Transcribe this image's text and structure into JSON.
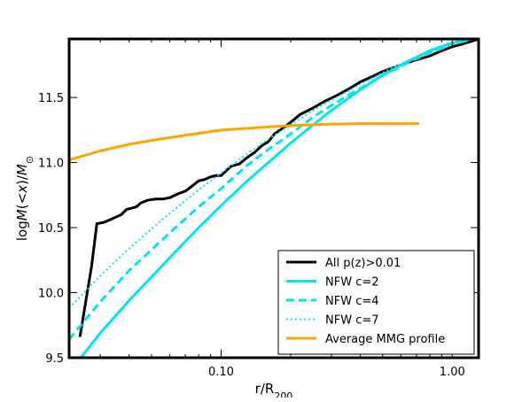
{
  "chart_data": {
    "type": "line",
    "title": "",
    "xlabel": {
      "main": "r/R",
      "sub": "200"
    },
    "ylabel": {
      "pre": "log",
      "M": "M",
      "lt": "(<",
      "x": "x",
      "rp": ")/",
      "M2": "M",
      "sun": "⊙"
    },
    "xscale": "log",
    "xlim": [
      0.022,
      1.3
    ],
    "ylim": [
      9.5,
      11.95
    ],
    "xticks": [
      0.1,
      1.0
    ],
    "xtick_labels": [
      "0.10",
      "1.00"
    ],
    "yticks": [
      9.5,
      10.0,
      10.5,
      11.0,
      11.5
    ],
    "ytick_labels": [
      "9.5",
      "10.0",
      "10.5",
      "11.0",
      "11.5"
    ],
    "grid": false,
    "legend_position": "lower-right",
    "series": [
      {
        "name": "All p(z)>0.01",
        "color": "#000000",
        "style": "solid",
        "x": [
          0.0245,
          0.0275,
          0.029,
          0.031,
          0.033,
          0.035,
          0.037,
          0.039,
          0.041,
          0.043,
          0.045,
          0.048,
          0.052,
          0.056,
          0.06,
          0.065,
          0.07,
          0.075,
          0.08,
          0.085,
          0.09,
          0.095,
          0.1,
          0.11,
          0.12,
          0.13,
          0.14,
          0.15,
          0.16,
          0.17,
          0.18,
          0.2,
          0.22,
          0.25,
          0.28,
          0.32,
          0.36,
          0.4,
          0.45,
          0.5,
          0.6,
          0.7,
          0.8,
          0.9,
          1.0,
          1.1,
          1.2,
          1.3
        ],
        "y": [
          9.66,
          10.2,
          10.53,
          10.54,
          10.56,
          10.58,
          10.6,
          10.64,
          10.65,
          10.66,
          10.69,
          10.71,
          10.72,
          10.72,
          10.73,
          10.76,
          10.78,
          10.82,
          10.86,
          10.87,
          10.89,
          10.9,
          10.9,
          10.97,
          10.99,
          11.04,
          11.08,
          11.13,
          11.16,
          11.22,
          11.25,
          11.31,
          11.37,
          11.42,
          11.47,
          11.52,
          11.57,
          11.62,
          11.66,
          11.7,
          11.75,
          11.79,
          11.82,
          11.86,
          11.89,
          11.91,
          11.93,
          11.95
        ]
      },
      {
        "name": "NFW c=2",
        "color": "#00e5ee",
        "style": "solid",
        "x": [
          0.024,
          0.03,
          0.04,
          0.05,
          0.06,
          0.08,
          0.1,
          0.13,
          0.16,
          0.2,
          0.25,
          0.3,
          0.4,
          0.5,
          0.6,
          0.7,
          0.8,
          1.0,
          1.3
        ],
        "y": [
          9.47,
          9.69,
          9.94,
          10.12,
          10.27,
          10.5,
          10.67,
          10.86,
          11.0,
          11.15,
          11.29,
          11.4,
          11.56,
          11.67,
          11.75,
          11.81,
          11.86,
          11.92,
          11.97
        ]
      },
      {
        "name": "NFW c=4",
        "color": "#00e5ee",
        "style": "dashed",
        "x": [
          0.022,
          0.03,
          0.04,
          0.05,
          0.06,
          0.08,
          0.1,
          0.13,
          0.16,
          0.2,
          0.25,
          0.3,
          0.4,
          0.5,
          0.6,
          0.7,
          0.8,
          1.0,
          1.3
        ],
        "y": [
          9.64,
          9.93,
          10.17,
          10.33,
          10.46,
          10.66,
          10.8,
          10.98,
          11.1,
          11.22,
          11.35,
          11.44,
          11.57,
          11.67,
          11.74,
          11.8,
          11.84,
          11.91,
          11.96
        ]
      },
      {
        "name": "NFW c=7",
        "color": "#00e5ee",
        "style": "dotted",
        "x": [
          0.022,
          0.03,
          0.04,
          0.05,
          0.06,
          0.08,
          0.1,
          0.13,
          0.16,
          0.2,
          0.25,
          0.3,
          0.4,
          0.5,
          0.6,
          0.7,
          0.8,
          1.0,
          1.3
        ],
        "y": [
          9.88,
          10.13,
          10.34,
          10.49,
          10.61,
          10.79,
          10.92,
          11.07,
          11.18,
          11.29,
          11.4,
          11.48,
          11.6,
          11.69,
          11.76,
          11.81,
          11.85,
          11.91,
          11.96
        ]
      },
      {
        "name": "Average MMG profile",
        "color": "#ffa500",
        "style": "solid",
        "x": [
          0.022,
          0.03,
          0.04,
          0.05,
          0.07,
          0.1,
          0.15,
          0.2,
          0.3,
          0.4,
          0.5,
          0.6,
          0.72
        ],
        "y": [
          11.02,
          11.09,
          11.14,
          11.17,
          11.21,
          11.25,
          11.27,
          11.285,
          11.295,
          11.3,
          11.3,
          11.3,
          11.3
        ]
      }
    ]
  }
}
